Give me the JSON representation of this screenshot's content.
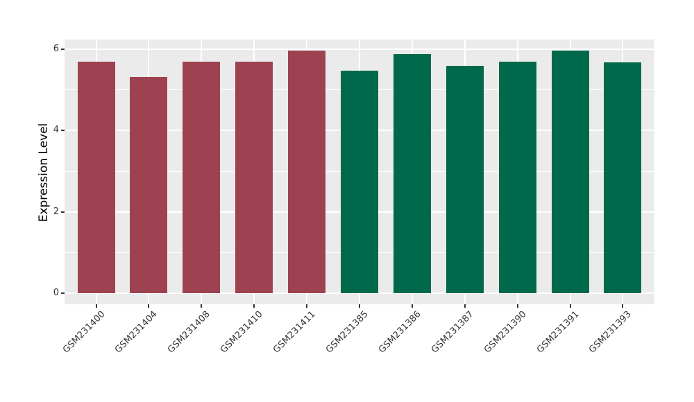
{
  "chart_data": {
    "type": "bar",
    "title": "",
    "xlabel": "",
    "ylabel": "Expression Level",
    "categories": [
      "GSM231400",
      "GSM231404",
      "GSM231408",
      "GSM231410",
      "GSM231411",
      "GSM231385",
      "GSM231386",
      "GSM231387",
      "GSM231390",
      "GSM231391",
      "GSM231393"
    ],
    "values": [
      5.7,
      5.32,
      5.7,
      5.7,
      5.97,
      5.48,
      5.89,
      5.59,
      5.7,
      5.96,
      5.68
    ],
    "bar_colors": [
      "#9E4251",
      "#9E4251",
      "#9E4251",
      "#9E4251",
      "#9E4251",
      "#00694B",
      "#00694B",
      "#00694B",
      "#00694B",
      "#00694B",
      "#00694B"
    ],
    "group_colors": {
      "maroon": "#9E4251",
      "green": "#00694B"
    },
    "yticks": [
      0,
      2,
      4,
      6
    ],
    "minor_yticks": [
      1,
      3,
      5
    ],
    "ylim": [
      -0.27,
      6.24
    ],
    "grid": "white horizontal major+minor, white vertical at category centers",
    "legend": "none",
    "panel_bg": "#EBEBEB",
    "tick_color": "#333333"
  }
}
